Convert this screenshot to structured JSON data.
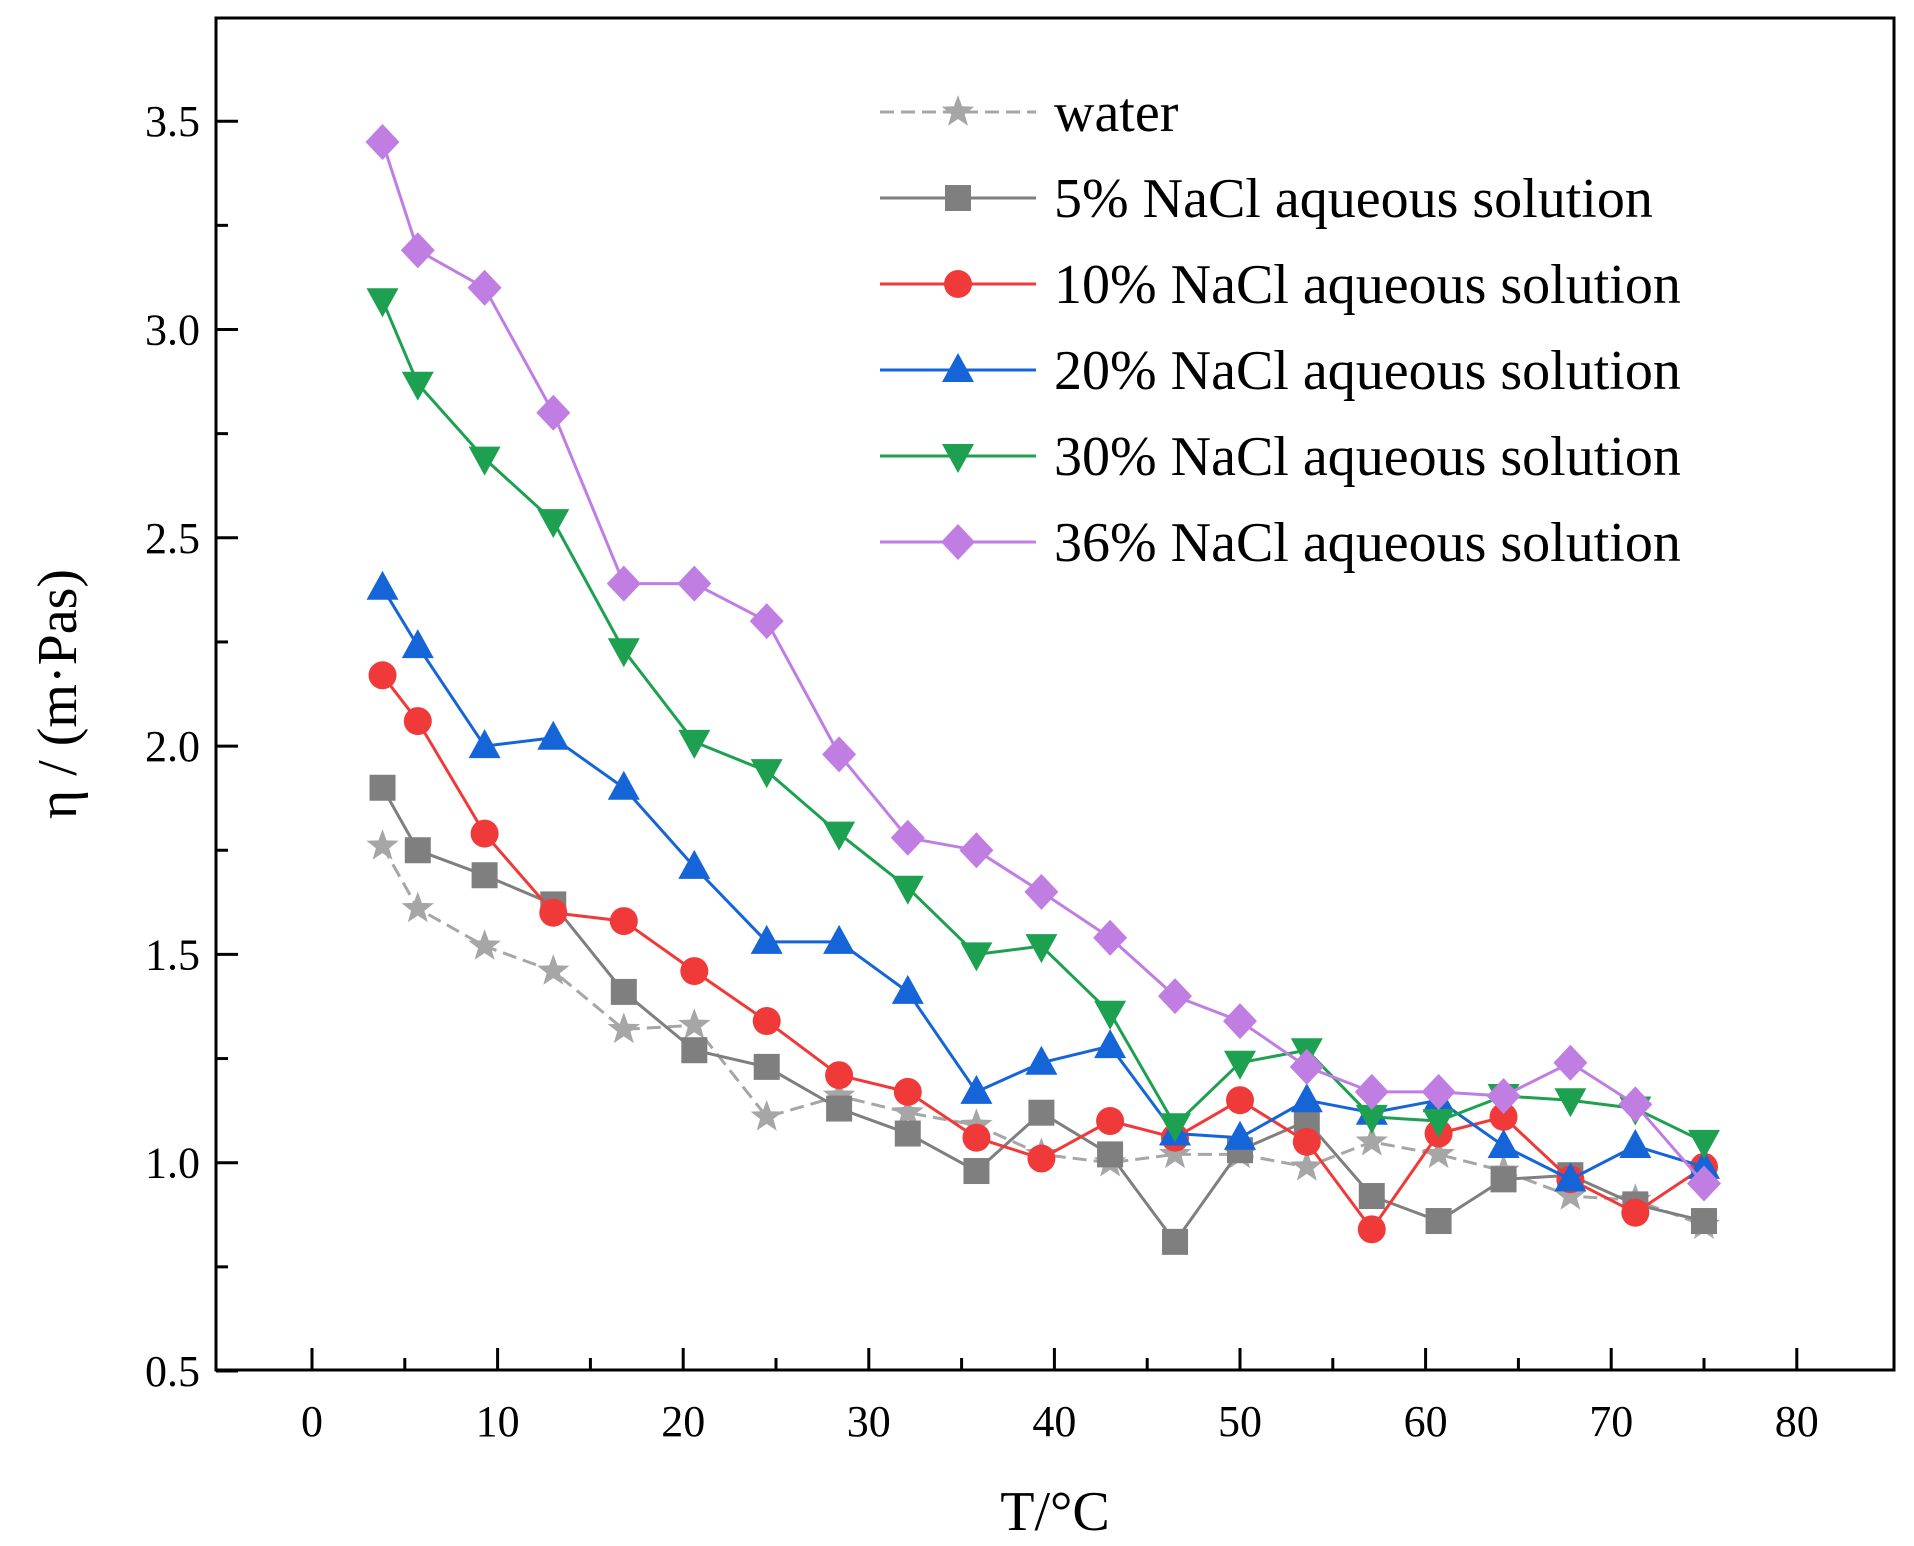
{
  "chart_data": {
    "type": "line",
    "xlabel": "T/°C",
    "ylabel": "η / (m·Pas)",
    "xlim": [
      -5,
      85
    ],
    "ylim": [
      0.5,
      3.75
    ],
    "xticks": [
      0,
      10,
      20,
      30,
      40,
      50,
      60,
      70,
      80
    ],
    "xtick_labels": [
      "0",
      "10",
      "20",
      "30",
      "40",
      "50",
      "60",
      "70",
      "80"
    ],
    "yticks": [
      0.5,
      1.0,
      1.5,
      2.0,
      2.5,
      3.0,
      3.5
    ],
    "ytick_labels": [
      "0.5",
      "1.0",
      "1.5",
      "2.0",
      "2.5",
      "3.0",
      "3.5"
    ],
    "legend_position": "top-right",
    "x": [
      3.8,
      5.7,
      9.3,
      13.0,
      16.8,
      20.6,
      24.5,
      28.4,
      32.1,
      35.8,
      39.3,
      43.0,
      46.5,
      50.0,
      53.6,
      57.1,
      60.7,
      64.2,
      67.8,
      71.3,
      75.0
    ],
    "series": [
      {
        "name": "water",
        "color": "#a6a6a6",
        "marker": "star",
        "dashed": true,
        "values": [
          1.76,
          1.61,
          1.52,
          1.46,
          1.32,
          1.33,
          1.11,
          1.16,
          1.12,
          1.09,
          1.02,
          1.0,
          1.02,
          1.02,
          0.99,
          1.05,
          1.02,
          0.98,
          0.92,
          0.91,
          0.85
        ]
      },
      {
        "name": "5% NaCl aqueous solution",
        "color": "#7f7f7f",
        "marker": "square",
        "dashed": false,
        "values": [
          1.9,
          1.75,
          1.69,
          1.62,
          1.41,
          1.27,
          1.23,
          1.13,
          1.07,
          0.98,
          1.12,
          1.02,
          0.81,
          1.03,
          1.1,
          0.92,
          0.86,
          0.96,
          0.97,
          0.9,
          0.86
        ]
      },
      {
        "name": "10% NaCl aqueous solution",
        "color": "#f03a3a",
        "marker": "circle",
        "dashed": false,
        "values": [
          2.17,
          2.06,
          1.79,
          1.6,
          1.58,
          1.46,
          1.34,
          1.21,
          1.17,
          1.06,
          1.01,
          1.1,
          1.06,
          1.15,
          1.05,
          0.84,
          1.07,
          1.11,
          0.96,
          0.88,
          0.99
        ]
      },
      {
        "name": "20% NaCl aqueous solution",
        "color": "#1565d8",
        "marker": "triangle-up",
        "dashed": false,
        "values": [
          2.38,
          2.24,
          2.0,
          2.02,
          1.9,
          1.71,
          1.53,
          1.53,
          1.41,
          1.17,
          1.24,
          1.28,
          1.07,
          1.06,
          1.15,
          1.12,
          1.15,
          1.04,
          0.96,
          1.04,
          0.99
        ]
      },
      {
        "name": "30% NaCl aqueous solution",
        "color": "#1da150",
        "marker": "triangle-down",
        "dashed": false,
        "values": [
          3.07,
          2.87,
          2.69,
          2.54,
          2.23,
          2.01,
          1.94,
          1.79,
          1.66,
          1.5,
          1.52,
          1.36,
          1.09,
          1.24,
          1.27,
          1.11,
          1.1,
          1.16,
          1.15,
          1.13,
          1.05
        ]
      },
      {
        "name": "36% NaCl aqueous solution",
        "color": "#c07ee3",
        "marker": "diamond",
        "dashed": false,
        "values": [
          3.45,
          3.19,
          3.1,
          2.8,
          2.39,
          2.39,
          2.3,
          1.98,
          1.78,
          1.75,
          1.65,
          1.54,
          1.4,
          1.34,
          1.23,
          1.17,
          1.17,
          1.16,
          1.24,
          1.14,
          0.95
        ]
      }
    ]
  }
}
